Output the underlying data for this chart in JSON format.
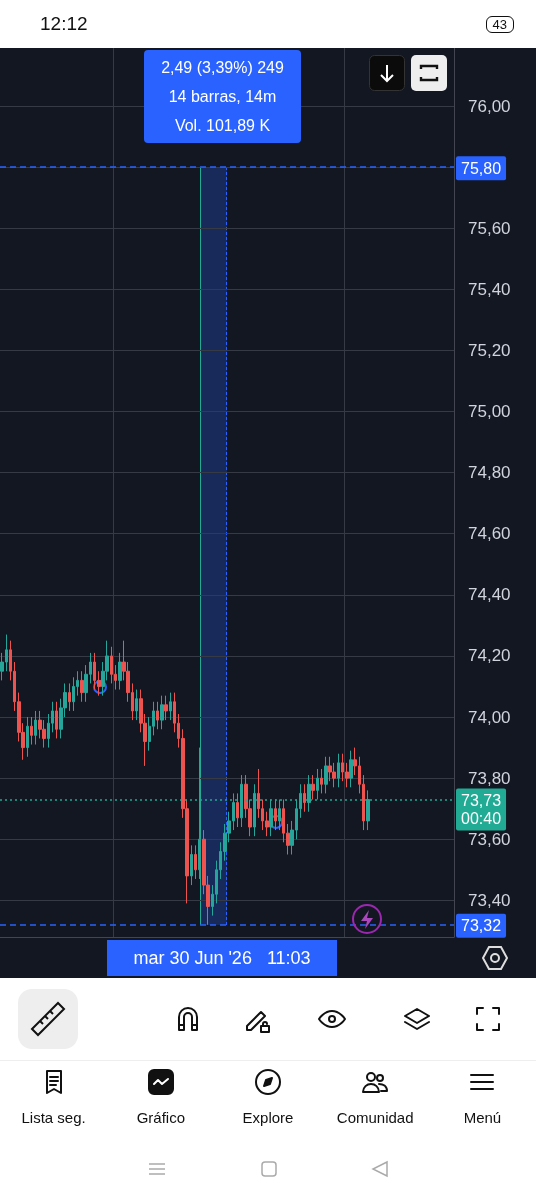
{
  "chart_data": {
    "type": "candlestick",
    "categories": [
      null,
      null,
      null,
      null,
      null,
      null,
      null,
      null,
      null,
      null,
      null,
      null,
      null,
      null,
      null,
      null,
      null,
      null,
      null,
      null,
      null,
      null,
      null,
      null,
      null,
      null,
      null,
      null,
      null,
      null,
      null,
      null,
      null,
      null,
      null,
      null,
      null,
      null,
      null,
      null,
      null,
      null,
      null,
      null,
      null,
      null,
      null,
      null,
      null,
      null,
      null,
      null,
      null,
      null,
      null,
      null,
      null,
      null,
      null,
      null,
      null,
      null,
      null,
      null,
      null,
      null,
      null,
      null,
      null,
      null,
      null,
      null,
      null,
      null,
      null,
      null,
      null,
      null,
      null,
      null,
      null,
      null,
      null,
      null,
      null,
      null,
      null,
      null,
      null,
      null,
      null,
      null,
      null,
      null,
      null,
      null,
      null,
      null,
      null,
      null,
      null,
      null,
      null,
      null,
      null,
      null,
      null,
      null
    ],
    "ohlc": [
      [
        74.15,
        74.21,
        74.12,
        74.18
      ],
      [
        74.18,
        74.27,
        74.15,
        74.22
      ],
      [
        74.22,
        74.25,
        74.12,
        74.15
      ],
      [
        74.15,
        74.18,
        74.02,
        74.05
      ],
      [
        74.05,
        74.08,
        73.92,
        73.95
      ],
      [
        73.95,
        73.98,
        73.86,
        73.9
      ],
      [
        73.9,
        74.0,
        73.87,
        73.97
      ],
      [
        73.97,
        74.0,
        73.91,
        73.94
      ],
      [
        73.94,
        74.02,
        73.91,
        73.99
      ],
      [
        73.99,
        74.02,
        73.93,
        73.96
      ],
      [
        73.96,
        73.99,
        73.9,
        73.93
      ],
      [
        73.93,
        74.01,
        73.9,
        73.98
      ],
      [
        73.98,
        74.05,
        73.95,
        74.02
      ],
      [
        74.02,
        74.05,
        73.93,
        73.96
      ],
      [
        73.96,
        74.06,
        73.93,
        74.03
      ],
      [
        74.03,
        74.11,
        74.0,
        74.08
      ],
      [
        74.08,
        74.11,
        74.02,
        74.05
      ],
      [
        74.05,
        74.13,
        74.02,
        74.1
      ],
      [
        74.1,
        74.15,
        74.07,
        74.12
      ],
      [
        74.12,
        74.15,
        74.05,
        74.08
      ],
      [
        74.08,
        74.17,
        74.05,
        74.14
      ],
      [
        74.14,
        74.21,
        74.11,
        74.18
      ],
      [
        74.18,
        74.21,
        74.09,
        74.12
      ],
      [
        74.12,
        74.15,
        74.07,
        74.1
      ],
      [
        74.1,
        74.18,
        74.07,
        74.15
      ],
      [
        74.15,
        74.25,
        74.12,
        74.2
      ],
      [
        74.2,
        74.23,
        74.11,
        74.14
      ],
      [
        74.14,
        74.17,
        74.09,
        74.12
      ],
      [
        74.12,
        74.21,
        74.09,
        74.18
      ],
      [
        74.18,
        74.25,
        74.12,
        74.15
      ],
      [
        74.15,
        74.18,
        74.05,
        74.08
      ],
      [
        74.08,
        74.11,
        73.99,
        74.02
      ],
      [
        74.02,
        74.09,
        73.99,
        74.06
      ],
      [
        74.06,
        74.09,
        73.95,
        73.98
      ],
      [
        73.98,
        74.01,
        73.84,
        73.92
      ],
      [
        73.92,
        74.0,
        73.89,
        73.97
      ],
      [
        73.97,
        74.05,
        73.94,
        74.02
      ],
      [
        74.02,
        74.05,
        73.96,
        73.99
      ],
      [
        73.99,
        74.07,
        73.96,
        74.04
      ],
      [
        74.04,
        74.07,
        73.99,
        74.02
      ],
      [
        74.02,
        74.08,
        73.99,
        74.05
      ],
      [
        74.05,
        74.08,
        73.95,
        73.98
      ],
      [
        73.98,
        74.01,
        73.9,
        73.93
      ],
      [
        73.93,
        73.96,
        73.67,
        73.7
      ],
      [
        73.7,
        73.73,
        73.39,
        73.48
      ],
      [
        73.48,
        73.58,
        73.45,
        73.55
      ],
      [
        73.55,
        73.58,
        73.47,
        73.5
      ],
      [
        73.5,
        73.9,
        73.47,
        73.6
      ],
      [
        73.6,
        73.63,
        73.42,
        73.45
      ],
      [
        73.45,
        73.48,
        73.32,
        73.38
      ],
      [
        73.38,
        73.45,
        73.35,
        73.42
      ],
      [
        73.42,
        73.53,
        73.39,
        73.5
      ],
      [
        73.5,
        73.59,
        73.47,
        73.56
      ],
      [
        73.56,
        73.65,
        73.53,
        73.62
      ],
      [
        73.62,
        73.69,
        73.59,
        73.66
      ],
      [
        73.66,
        73.75,
        73.63,
        73.72
      ],
      [
        73.72,
        73.75,
        73.64,
        73.67
      ],
      [
        73.67,
        73.81,
        73.64,
        73.78
      ],
      [
        73.78,
        73.81,
        73.67,
        73.7
      ],
      [
        73.7,
        73.73,
        73.61,
        73.64
      ],
      [
        73.64,
        73.78,
        73.61,
        73.75
      ],
      [
        73.75,
        73.83,
        73.67,
        73.7
      ],
      [
        73.7,
        73.73,
        73.63,
        73.66
      ],
      [
        73.66,
        73.69,
        73.61,
        73.64
      ],
      [
        73.64,
        73.73,
        73.61,
        73.7
      ],
      [
        73.7,
        73.73,
        73.63,
        73.66
      ],
      [
        73.66,
        73.73,
        73.63,
        73.7
      ],
      [
        73.7,
        73.73,
        73.59,
        73.62
      ],
      [
        73.62,
        73.65,
        73.55,
        73.58
      ],
      [
        73.58,
        73.66,
        73.55,
        73.63
      ],
      [
        73.63,
        73.73,
        73.6,
        73.7
      ],
      [
        73.7,
        73.78,
        73.67,
        73.75
      ],
      [
        73.75,
        73.78,
        73.69,
        73.72
      ],
      [
        73.72,
        73.81,
        73.69,
        73.78
      ],
      [
        73.78,
        73.81,
        73.73,
        73.76
      ],
      [
        73.76,
        73.83,
        73.73,
        73.8
      ],
      [
        73.8,
        73.83,
        73.75,
        73.78
      ],
      [
        73.78,
        73.87,
        73.75,
        73.84
      ],
      [
        73.84,
        73.87,
        73.79,
        73.82
      ],
      [
        73.82,
        73.85,
        73.77,
        73.8
      ],
      [
        73.8,
        73.88,
        73.77,
        73.85
      ],
      [
        73.85,
        73.88,
        73.79,
        73.82
      ],
      [
        73.82,
        73.85,
        73.77,
        73.8
      ],
      [
        73.8,
        73.89,
        73.77,
        73.86
      ],
      [
        73.86,
        73.9,
        73.81,
        73.84
      ],
      [
        73.84,
        73.87,
        73.75,
        73.78
      ],
      [
        73.78,
        73.81,
        73.63,
        73.66
      ],
      [
        73.66,
        73.76,
        73.63,
        73.73
      ],
      null,
      null,
      null,
      null,
      null,
      null,
      null,
      null,
      null,
      null,
      null,
      null,
      null,
      null,
      null,
      null,
      null,
      null,
      null,
      null
    ],
    "ylim": [
      73.28,
      76.19
    ],
    "yticks": [
      {
        "value": 73.4,
        "label": "73,40"
      },
      {
        "value": 73.6,
        "label": "73,60"
      },
      {
        "value": 73.8,
        "label": "73,80"
      },
      {
        "value": 74,
        "label": "74,00"
      },
      {
        "value": 74.2,
        "label": "74,20"
      },
      {
        "value": 74.4,
        "label": "74,40"
      },
      {
        "value": 74.6,
        "label": "74,60"
      },
      {
        "value": 74.8,
        "label": "74,80"
      },
      {
        "value": 75,
        "label": "75,00"
      },
      {
        "value": 75.2,
        "label": "75,20"
      },
      {
        "value": 75.4,
        "label": "75,40"
      },
      {
        "value": 75.6,
        "label": "75,60"
      },
      {
        "value": 75.8,
        "label": null
      },
      {
        "value": 76,
        "label": "76,00"
      }
    ],
    "grid": true,
    "tick_labels": "y",
    "ref_lines": [
      {
        "axis": "y",
        "value": 75.8,
        "label": "75,80",
        "color": "#2962ff",
        "line_style": "dashed"
      },
      {
        "axis": "y",
        "value": 73.32,
        "label": "73,32",
        "color": "#2962ff",
        "line_style": "dashed"
      },
      {
        "axis": "y",
        "value": 73.73,
        "label": "73,73\n00:40",
        "color": "#22ab94",
        "line_style": "dotted"
      }
    ],
    "annotations": [
      "2,49 (3,39%) 249",
      "14 barras, 14m",
      "Vol. 101,89 K",
      "mar 30 Jun '26   11:03",
      "12:12",
      "43",
      "Lista seg.",
      "Gráfico",
      "Explore",
      "Comunidad",
      "Menú"
    ]
  }
}
